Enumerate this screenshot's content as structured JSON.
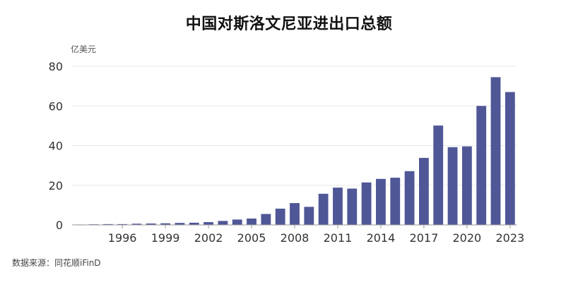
{
  "title": "中国对斯洛文尼亚进出口总额",
  "source": "数据来源：同花顺iFinD",
  "colors": {
    "bar": "#4f5797",
    "grid": "#e8e8e8",
    "axis": "#999999"
  },
  "chart_data": {
    "type": "bar",
    "title": "中国对斯洛文尼亚进出口总额",
    "ylabel": "亿美元",
    "xlabel": "",
    "ylim": [
      0,
      80
    ],
    "yticks": [
      0,
      20,
      40,
      60,
      80
    ],
    "grid": true,
    "categories": [
      "1993",
      "1994",
      "1995",
      "1996",
      "1997",
      "1998",
      "1999",
      "2000",
      "2001",
      "2002",
      "2003",
      "2004",
      "2005",
      "2006",
      "2007",
      "2008",
      "2009",
      "2010",
      "2011",
      "2012",
      "2013",
      "2014",
      "2015",
      "2016",
      "2017",
      "2018",
      "2019",
      "2020",
      "2021",
      "2022",
      "2023"
    ],
    "xtick_labels": [
      "1996",
      "1999",
      "2002",
      "2005",
      "2008",
      "2011",
      "2014",
      "2017",
      "2020",
      "2023"
    ],
    "values": [
      0.2,
      0.3,
      0.4,
      0.4,
      0.6,
      0.7,
      0.8,
      1.0,
      1.1,
      1.4,
      2.0,
      2.7,
      3.2,
      5.5,
      8.2,
      11.0,
      9.1,
      15.7,
      18.8,
      18.3,
      21.4,
      23.2,
      23.8,
      27.1,
      33.8,
      50.1,
      39.2,
      39.6,
      60.0,
      74.5,
      67.0
    ]
  }
}
